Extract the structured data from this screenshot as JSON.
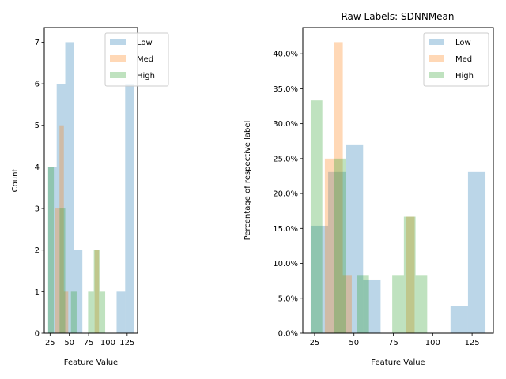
{
  "colors": {
    "Low": "#1f77b4",
    "Med": "#ff7f0e",
    "High": "#2ca02c"
  },
  "chart_data": [
    {
      "type": "bar",
      "title": "",
      "xlabel": "Feature Value",
      "ylabel": "Count",
      "xlim": [
        17.5,
        138.5
      ],
      "ylim": [
        0,
        7.35
      ],
      "xticks": [
        {
          "v": 25,
          "label": "25"
        },
        {
          "v": 50,
          "label": "50"
        },
        {
          "v": 75,
          "label": "75"
        },
        {
          "v": 100,
          "label": "100"
        },
        {
          "v": 125,
          "label": "125"
        }
      ],
      "yticks": [
        {
          "v": 0,
          "label": "0"
        },
        {
          "v": 1,
          "label": "1"
        },
        {
          "v": 2,
          "label": "2"
        },
        {
          "v": 3,
          "label": "3"
        },
        {
          "v": 4,
          "label": "4"
        },
        {
          "v": 5,
          "label": "5"
        },
        {
          "v": 6,
          "label": "6"
        },
        {
          "v": 7,
          "label": "7"
        }
      ],
      "legend": "top-center",
      "series": [
        {
          "name": "Low",
          "bins": [
            [
              22.5,
              33.6,
              4
            ],
            [
              33.6,
              44.7,
              6
            ],
            [
              44.7,
              55.8,
              7
            ],
            [
              55.8,
              66.9,
              2
            ],
            [
              66.9,
              78.0,
              0
            ],
            [
              78.0,
              89.1,
              0
            ],
            [
              89.1,
              100.2,
              0
            ],
            [
              100.2,
              111.3,
              0
            ],
            [
              111.3,
              122.4,
              1
            ],
            [
              122.4,
              133.5,
              6
            ]
          ]
        },
        {
          "name": "Med",
          "bins": [
            [
              31.5,
              37.2,
              3
            ],
            [
              37.2,
              42.9,
              5
            ],
            [
              42.9,
              48.6,
              1
            ],
            [
              48.6,
              54.3,
              0
            ],
            [
              54.3,
              60.0,
              0
            ],
            [
              60.0,
              65.7,
              0
            ],
            [
              65.7,
              71.4,
              0
            ],
            [
              71.4,
              77.1,
              0
            ],
            [
              77.1,
              82.8,
              0
            ],
            [
              82.8,
              88.5,
              2
            ],
            [
              88.5,
              94.2,
              0
            ]
          ]
        },
        {
          "name": "High",
          "bins": [
            [
              22.5,
              29.9,
              4
            ],
            [
              29.9,
              37.3,
              0
            ],
            [
              37.3,
              44.7,
              3
            ],
            [
              44.7,
              52.1,
              0
            ],
            [
              52.1,
              59.5,
              1
            ],
            [
              59.5,
              66.9,
              0
            ],
            [
              66.9,
              74.3,
              0
            ],
            [
              74.3,
              81.7,
              1
            ],
            [
              81.7,
              89.1,
              2
            ],
            [
              89.1,
              96.5,
              1
            ]
          ]
        }
      ]
    },
    {
      "type": "bar",
      "title": "Raw Labels: SDNNMean",
      "xlabel": "Feature Value",
      "ylabel": "Percentage of respective label",
      "xlim": [
        17.5,
        138.5
      ],
      "ylim": [
        0,
        0.4375
      ],
      "xticks": [
        {
          "v": 25,
          "label": "25"
        },
        {
          "v": 50,
          "label": "50"
        },
        {
          "v": 75,
          "label": "75"
        },
        {
          "v": 100,
          "label": "100"
        },
        {
          "v": 125,
          "label": "125"
        }
      ],
      "yticks": [
        {
          "v": 0,
          "label": "0.0%"
        },
        {
          "v": 0.05,
          "label": "5.0%"
        },
        {
          "v": 0.1,
          "label": "10.0%"
        },
        {
          "v": 0.15,
          "label": "15.0%"
        },
        {
          "v": 0.2,
          "label": "20.0%"
        },
        {
          "v": 0.25,
          "label": "25.0%"
        },
        {
          "v": 0.3,
          "label": "30.0%"
        },
        {
          "v": 0.35,
          "label": "35.0%"
        },
        {
          "v": 0.4,
          "label": "40.0%"
        }
      ],
      "legend": "top-right",
      "series": [
        {
          "name": "Low",
          "bins": [
            [
              22.5,
              33.6,
              0.1538
            ],
            [
              33.6,
              44.7,
              0.2308
            ],
            [
              44.7,
              55.8,
              0.2692
            ],
            [
              55.8,
              66.9,
              0.0769
            ],
            [
              66.9,
              78.0,
              0
            ],
            [
              78.0,
              89.1,
              0
            ],
            [
              89.1,
              100.2,
              0
            ],
            [
              100.2,
              111.3,
              0
            ],
            [
              111.3,
              122.4,
              0.0385
            ],
            [
              122.4,
              133.5,
              0.2308
            ]
          ]
        },
        {
          "name": "Med",
          "bins": [
            [
              31.5,
              37.2,
              0.25
            ],
            [
              37.2,
              42.9,
              0.4167
            ],
            [
              42.9,
              48.6,
              0.0833
            ],
            [
              48.6,
              54.3,
              0
            ],
            [
              54.3,
              60.0,
              0
            ],
            [
              60.0,
              65.7,
              0
            ],
            [
              65.7,
              71.4,
              0
            ],
            [
              71.4,
              77.1,
              0
            ],
            [
              77.1,
              82.8,
              0
            ],
            [
              82.8,
              88.5,
              0.1667
            ],
            [
              88.5,
              94.2,
              0
            ]
          ]
        },
        {
          "name": "High",
          "bins": [
            [
              22.5,
              29.9,
              0.3333
            ],
            [
              29.9,
              37.3,
              0
            ],
            [
              37.3,
              44.7,
              0.25
            ],
            [
              44.7,
              52.1,
              0
            ],
            [
              52.1,
              59.5,
              0.0833
            ],
            [
              59.5,
              66.9,
              0
            ],
            [
              66.9,
              74.3,
              0
            ],
            [
              74.3,
              81.7,
              0.0833
            ],
            [
              81.7,
              89.1,
              0.1667
            ],
            [
              89.1,
              96.5,
              0.0833
            ]
          ]
        }
      ]
    }
  ]
}
